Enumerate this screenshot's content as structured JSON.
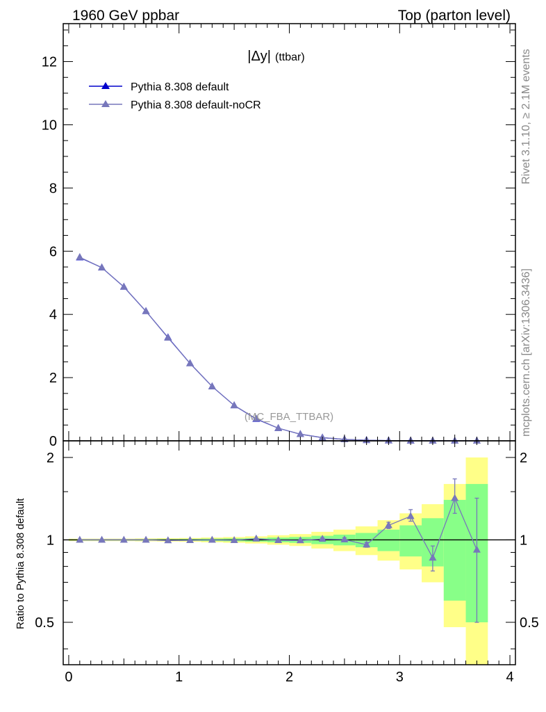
{
  "header": {
    "left": "1960 GeV ppbar",
    "right": "Top (parton level)"
  },
  "side_labels": {
    "rivet": "Rivet 3.1.10, ≥ 2.1M events",
    "source": "mcplots.cern.ch [arXiv:1306.3436]"
  },
  "chart_data": [
    {
      "type": "line",
      "title": "|Δy|",
      "title_suffix": "(ttbar)",
      "watermark": "(MC_FBA_TTBAR)",
      "xlim": [
        -0.05,
        4.05
      ],
      "ylim": [
        0,
        13.2
      ],
      "yticks": [
        0,
        2,
        4,
        6,
        8,
        10,
        12
      ],
      "legend_position": "top-left",
      "x": [
        0.1,
        0.3,
        0.5,
        0.7,
        0.9,
        1.1,
        1.3,
        1.5,
        1.7,
        1.9,
        2.1,
        2.3,
        2.5,
        2.7,
        2.9,
        3.1,
        3.3,
        3.5,
        3.7
      ],
      "series": [
        {
          "name": "Pythia 8.308 default",
          "color": "#0000cc",
          "marker": "triangle",
          "values": [
            5.8,
            5.48,
            4.87,
            4.1,
            3.27,
            2.45,
            1.72,
            1.12,
            0.69,
            0.4,
            0.21,
            0.1,
            0.045,
            0.019,
            0.008,
            0.003,
            0.0012,
            0.0005,
            0.0002
          ]
        },
        {
          "name": "Pythia 8.308 default-noCR",
          "color": "#7777bb",
          "marker": "triangle",
          "values": [
            5.81,
            5.48,
            4.87,
            4.1,
            3.26,
            2.45,
            1.72,
            1.12,
            0.7,
            0.4,
            0.21,
            0.1,
            0.045,
            0.018,
            0.009,
            0.0037,
            0.001,
            0.0007,
            0.0002
          ]
        }
      ]
    },
    {
      "type": "line",
      "ylabel": "Ratio to Pythia 8.308 default",
      "xlim": [
        -0.05,
        4.05
      ],
      "ylim": [
        0.35,
        2.3
      ],
      "yscale": "log",
      "xticks": [
        0,
        1,
        2,
        3,
        4
      ],
      "yticks": [
        0.5,
        1,
        2
      ],
      "reference_line": 1,
      "band_edges": [
        0.0,
        0.2,
        0.4,
        0.6,
        0.8,
        1.0,
        1.2,
        1.4,
        1.6,
        1.8,
        2.0,
        2.2,
        2.4,
        2.6,
        2.8,
        3.0,
        3.2,
        3.4,
        3.6,
        3.8
      ],
      "band_inner": [
        [
          0.995,
          1.005
        ],
        [
          0.995,
          1.005
        ],
        [
          0.995,
          1.005
        ],
        [
          0.994,
          1.006
        ],
        [
          0.993,
          1.007
        ],
        [
          0.992,
          1.008
        ],
        [
          0.99,
          1.01
        ],
        [
          0.988,
          1.012
        ],
        [
          0.985,
          1.015
        ],
        [
          0.98,
          1.02
        ],
        [
          0.975,
          1.025
        ],
        [
          0.965,
          1.035
        ],
        [
          0.955,
          1.045
        ],
        [
          0.94,
          1.06
        ],
        [
          0.91,
          1.09
        ],
        [
          0.87,
          1.13
        ],
        [
          0.8,
          1.2
        ],
        [
          0.6,
          1.4
        ],
        [
          0.5,
          1.6
        ]
      ],
      "band_outer": [
        [
          0.99,
          1.01
        ],
        [
          0.99,
          1.01
        ],
        [
          0.99,
          1.01
        ],
        [
          0.988,
          1.012
        ],
        [
          0.986,
          1.014
        ],
        [
          0.984,
          1.016
        ],
        [
          0.98,
          1.02
        ],
        [
          0.976,
          1.024
        ],
        [
          0.97,
          1.03
        ],
        [
          0.96,
          1.04
        ],
        [
          0.95,
          1.05
        ],
        [
          0.93,
          1.07
        ],
        [
          0.91,
          1.09
        ],
        [
          0.88,
          1.12
        ],
        [
          0.84,
          1.18
        ],
        [
          0.78,
          1.25
        ],
        [
          0.7,
          1.35
        ],
        [
          0.48,
          1.6
        ],
        [
          0.35,
          2.0
        ]
      ],
      "series": [
        {
          "name": "Pythia 8.308 default-noCR",
          "color": "#7777bb",
          "x": [
            0.1,
            0.3,
            0.5,
            0.7,
            0.9,
            1.1,
            1.3,
            1.5,
            1.7,
            1.9,
            2.1,
            2.3,
            2.5,
            2.7,
            2.9,
            3.1,
            3.3,
            3.5,
            3.7
          ],
          "values": [
            1.0,
            1.0,
            1.0,
            1.0,
            0.995,
            0.997,
            1.0,
            0.997,
            1.01,
            0.997,
            0.995,
            1.008,
            1.003,
            0.96,
            1.13,
            1.22,
            0.86,
            1.42,
            0.92
          ],
          "err_low": [
            0.002,
            0.002,
            0.002,
            0.002,
            0.003,
            0.003,
            0.003,
            0.004,
            0.005,
            0.006,
            0.008,
            0.01,
            0.015,
            0.02,
            0.03,
            0.05,
            0.09,
            0.17,
            0.42
          ],
          "err_high": [
            0.002,
            0.002,
            0.002,
            0.002,
            0.003,
            0.003,
            0.003,
            0.004,
            0.005,
            0.006,
            0.008,
            0.01,
            0.015,
            0.02,
            0.03,
            0.07,
            0.09,
            0.25,
            0.5
          ]
        }
      ]
    }
  ]
}
